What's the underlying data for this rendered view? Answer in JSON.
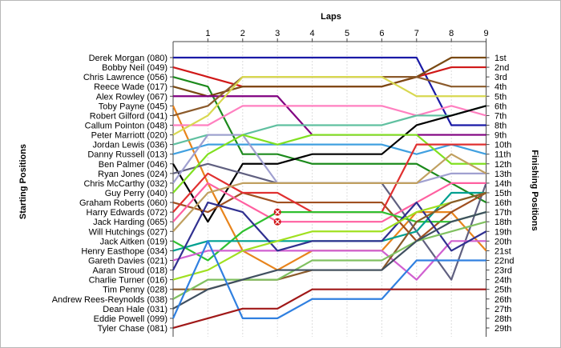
{
  "chart_data": {
    "type": "line",
    "title": "",
    "xlabel": "Laps",
    "ylabel_left": "Starting Positions",
    "ylabel_right": "Finishing Positions",
    "x": [
      0,
      1,
      2,
      3,
      4,
      5,
      6,
      7,
      8,
      9
    ],
    "x_tick_labels": [
      "1",
      "2",
      "3",
      "4",
      "5",
      "6",
      "7",
      "8",
      "9"
    ],
    "ylim": [
      1,
      29
    ],
    "grid": true,
    "start_labels": [
      "Derek Morgan (080)",
      "Bobby Neil (049)",
      "Chris Lawrence (056)",
      "Reece Wade (017)",
      "Alex Rowley (067)",
      "Toby Payne (045)",
      "Robert Gilford (041)",
      "Callum Pointon (048)",
      "Peter Marriott (020)",
      "Jordan Lewis (036)",
      "Danny Russell (013)",
      "Ben Palmer (046)",
      "Ryan Jones (024)",
      "Chris McCarthy (032)",
      "Guy Perry (040)",
      "Graham Roberts (060)",
      "Harry Edwards (072)",
      "Jack Harding (065)",
      "Will Hutchings (027)",
      "Jack Aitken (019)",
      "Henry Easthope (034)",
      "Gareth Davies (021)",
      "Aaran Stroud (018)",
      "Charlie Turner (016)",
      "Tim Penny (028)",
      "Andrew Rees-Reynolds (038)",
      "Dean Hale (031)",
      "Eddie Powell (099)",
      "Tyler Chase (081)"
    ],
    "finish_labels": [
      "1st",
      "2nd",
      "3rd",
      "4th",
      "5th",
      "6th",
      "7th",
      "8th",
      "9th",
      "10th",
      "11th",
      "12th",
      "13th",
      "14th",
      "15th",
      "16th",
      "17th",
      "18th",
      "19th",
      "20th",
      "21st",
      "22nd",
      "23rd",
      "24th",
      "25th",
      "26th",
      "27th",
      "28th",
      "29th"
    ],
    "series": [
      {
        "color": "#1a1aa6",
        "values": [
          1,
          1,
          1,
          1,
          1,
          1,
          1,
          1,
          8,
          8
        ]
      },
      {
        "color": "#d01818",
        "values": [
          2,
          3,
          4,
          4,
          4,
          4,
          4,
          3,
          2,
          2
        ]
      },
      {
        "color": "#1c8a1c",
        "values": [
          3,
          4,
          11,
          11,
          12,
          12,
          12,
          12,
          14,
          16
        ]
      },
      {
        "color": "#7a4a14",
        "values": [
          4,
          5,
          4,
          4,
          4,
          4,
          4,
          3,
          1,
          1
        ]
      },
      {
        "color": "#800080",
        "values": [
          5,
          5,
          5,
          5,
          9,
          9,
          9,
          9,
          9,
          9
        ]
      },
      {
        "color": "#e8841c",
        "values": [
          6,
          14,
          21,
          23,
          21,
          21,
          21,
          17,
          17,
          21
        ]
      },
      {
        "color": "#8b5a2b",
        "values": [
          7,
          6,
          3,
          3,
          3,
          3,
          3,
          3,
          4,
          4
        ]
      },
      {
        "color": "#ff80c0",
        "values": [
          8,
          8,
          6,
          6,
          6,
          6,
          6,
          7,
          6,
          7
        ]
      },
      {
        "color": "#d8d850",
        "values": [
          9,
          7,
          3,
          3,
          3,
          3,
          3,
          5,
          5,
          5
        ]
      },
      {
        "color": "#60c0a0",
        "values": [
          10,
          9,
          9,
          8,
          8,
          8,
          8,
          7,
          7,
          6
        ]
      },
      {
        "color": "#40a0e0",
        "values": [
          11,
          10,
          10,
          10,
          10,
          10,
          10,
          11,
          10,
          11
        ]
      },
      {
        "color": "#000000",
        "values": [
          12,
          18,
          12,
          12,
          11,
          11,
          11,
          8,
          7,
          6
        ]
      },
      {
        "color": "#606080",
        "values": [
          13,
          12,
          13,
          14,
          14,
          14,
          14,
          19,
          24,
          14
        ]
      },
      {
        "color": "#a0a0d0",
        "values": [
          14,
          9,
          9,
          14,
          14,
          14,
          14,
          14,
          13,
          13
        ]
      },
      {
        "color": "#80e020",
        "values": [
          15,
          11,
          9,
          10,
          9,
          9,
          9,
          9,
          12,
          12
        ]
      },
      {
        "color": "#a05020",
        "values": [
          16,
          17,
          15,
          16,
          16,
          16,
          16,
          20,
          17,
          15
        ]
      },
      {
        "color": "#e03030",
        "values": [
          17,
          13,
          15,
          15,
          17,
          17,
          17,
          10,
          10,
          10
        ]
      },
      {
        "color": "#ff60a0",
        "values": [
          18,
          14,
          16,
          18,
          18,
          18,
          18,
          16,
          14,
          14
        ]
      },
      {
        "color": "#c0a060",
        "values": [
          19,
          15,
          14,
          14,
          14,
          14,
          14,
          14,
          11,
          13
        ]
      },
      {
        "color": "#30c030",
        "values": [
          20,
          22,
          19,
          17,
          17,
          17,
          17,
          18,
          18,
          17
        ]
      },
      {
        "color": "#00a090",
        "values": [
          21,
          20,
          20,
          20,
          20,
          20,
          20,
          19,
          15,
          15
        ]
      },
      {
        "color": "#d060d0",
        "values": [
          22,
          21,
          21,
          21,
          21,
          21,
          21,
          24,
          20,
          20
        ]
      },
      {
        "color": "#303090",
        "values": [
          23,
          16,
          17,
          21,
          20,
          20,
          20,
          16,
          21,
          19
        ]
      },
      {
        "color": "#a0e020",
        "values": [
          24,
          23,
          21,
          20,
          19,
          19,
          19,
          17,
          16,
          15
        ]
      },
      {
        "color": "#8a5a2a",
        "values": [
          25,
          25,
          24,
          24,
          23,
          23,
          23,
          18,
          16,
          15
        ]
      },
      {
        "color": "#80c060",
        "values": [
          26,
          24,
          24,
          24,
          22,
          22,
          22,
          20,
          19,
          18
        ]
      },
      {
        "color": "#405060",
        "values": [
          27,
          25,
          24,
          23,
          23,
          23,
          23,
          20,
          18,
          17
        ]
      },
      {
        "color": "#3080e0",
        "values": [
          28,
          20,
          28,
          28,
          26,
          26,
          26,
          22,
          22,
          22
        ]
      },
      {
        "color": "#a01818",
        "values": [
          29,
          28,
          27,
          27,
          25,
          25,
          25,
          25,
          25,
          25
        ]
      }
    ],
    "retirements": [
      {
        "lap": 3,
        "position": 17
      },
      {
        "lap": 3,
        "position": 18
      }
    ]
  }
}
